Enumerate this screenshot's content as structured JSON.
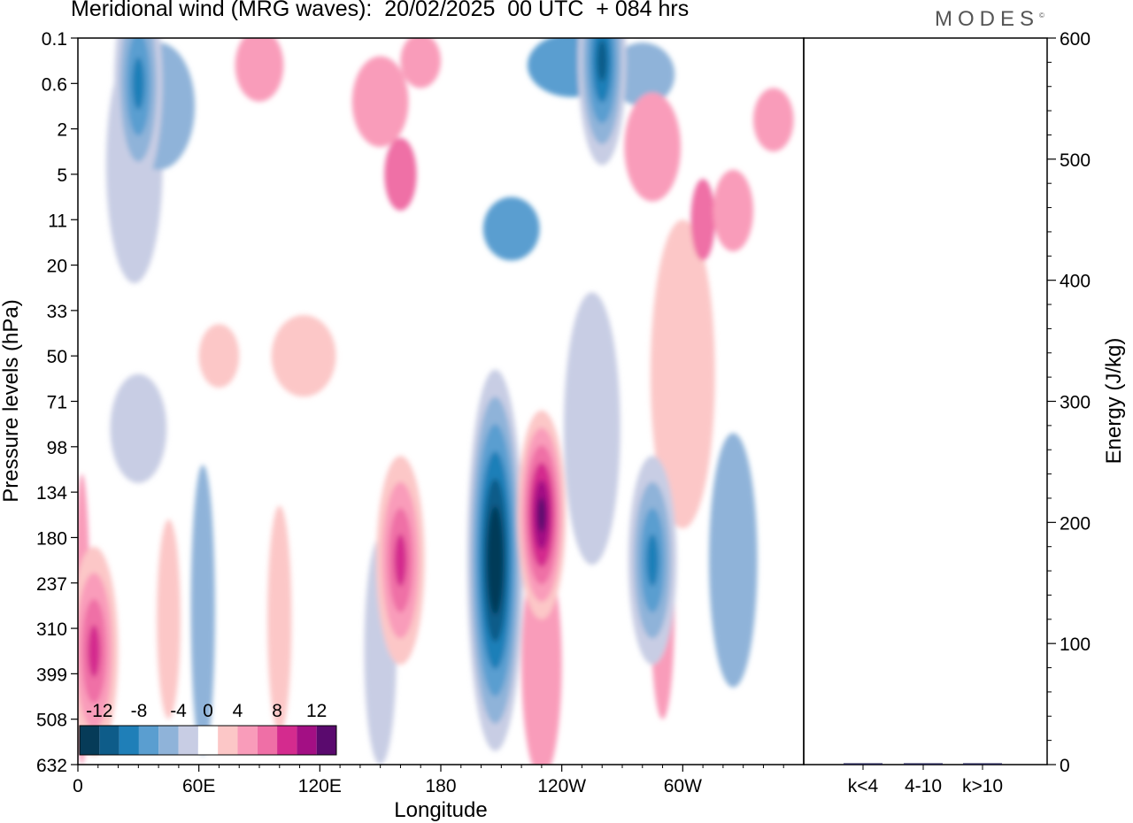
{
  "header": {
    "title": "Meridional wind (MRG waves):  20/02/2025  00 UTC  + 084 hrs",
    "brand": "MODES",
    "brand_mark": "©"
  },
  "chart_data": [
    {
      "type": "heatmap",
      "title": "Meridional wind (MRG waves):  20/02/2025  00 UTC  + 084 hrs",
      "xlabel": "Longitude",
      "ylabel": "Pressure levels (hPa)",
      "x_ticks": [
        "0",
        "60E",
        "120E",
        "180",
        "120W",
        "60W"
      ],
      "y_ticks": [
        "0.1",
        "0.6",
        "2",
        "5",
        "11",
        "20",
        "33",
        "50",
        "71",
        "98",
        "134",
        "180",
        "237",
        "310",
        "399",
        "508",
        "632"
      ],
      "colorbar": {
        "tick_labels": [
          "-12",
          "-8",
          "-4",
          "0",
          "4",
          "8",
          "12"
        ],
        "levels": [
          -14,
          -12,
          -10,
          -8,
          -6,
          -4,
          -2,
          2,
          4,
          6,
          8,
          10,
          12,
          14
        ],
        "colors": [
          "#063b58",
          "#0e5c89",
          "#1f7fb8",
          "#5a9ed0",
          "#8fb3d9",
          "#c8cde4",
          "#ffffff",
          "#fcc7c7",
          "#f99cba",
          "#ef6fa6",
          "#d42b8e",
          "#a30f84",
          "#5a0a6e"
        ]
      },
      "features": [
        {
          "name": "strong-negative-core-180-120W",
          "lon": 207,
          "level_index": 11.5,
          "value": -14
        },
        {
          "name": "strong-positive-core-120W",
          "lon": 230,
          "level_index": 10.5,
          "value": 12
        },
        {
          "name": "positive-lobe-160E",
          "lon": 160,
          "level_index": 11.5,
          "value": 8
        },
        {
          "name": "positive-lobe-0",
          "lon": 8,
          "level_index": 13.5,
          "value": 8
        },
        {
          "name": "negative-lobe-70W",
          "lon": 285,
          "level_index": 11.5,
          "value": -8
        },
        {
          "name": "negative-upper-30E",
          "lon": 30,
          "level_index": 1,
          "value": -8
        },
        {
          "name": "negative-upper-130W",
          "lon": 260,
          "level_index": 0.5,
          "value": -10
        }
      ]
    },
    {
      "type": "bar",
      "categories": [
        "k<4",
        "4-10",
        "k>10"
      ],
      "values": [
        0.4,
        0.6,
        0.1
      ],
      "ylabel": "Energy (J/kg)",
      "ylim": [
        0,
        600
      ],
      "y_ticks": [
        "0",
        "100",
        "200",
        "300",
        "400",
        "500",
        "600"
      ],
      "bar_color": "#1a1a4a"
    }
  ]
}
